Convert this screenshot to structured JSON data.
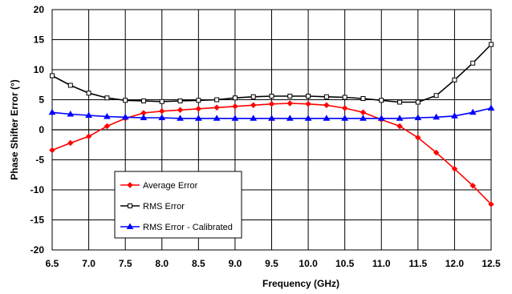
{
  "chart_data": {
    "type": "line",
    "xlabel": "Frequency (GHz)",
    "ylabel": "Phase Shifter Error (°)",
    "xlim": [
      6.5,
      12.5
    ],
    "ylim": [
      -20,
      20
    ],
    "xticks": [
      "6.5",
      "7.0",
      "7.5",
      "8.0",
      "8.5",
      "9.0",
      "9.5",
      "10.0",
      "10.5",
      "11.0",
      "11.5",
      "12.0",
      "12.5"
    ],
    "yticks": [
      "20",
      "15",
      "10",
      "5",
      "0",
      "-5",
      "-10",
      "-15",
      "-20"
    ],
    "grid": true,
    "legend_position": "lower-left",
    "series": [
      {
        "name": "Average Error",
        "color": "#ff0000",
        "marker": "diamond",
        "x": [
          6.5,
          6.75,
          7.0,
          7.25,
          7.5,
          7.75,
          8.0,
          8.25,
          8.5,
          8.75,
          9.0,
          9.25,
          9.5,
          9.75,
          10.0,
          10.25,
          10.5,
          10.75,
          11.0,
          11.25,
          11.5,
          11.75,
          12.0,
          12.25,
          12.5
        ],
        "values": [
          -3.4,
          -2.2,
          -1.1,
          0.6,
          1.9,
          2.8,
          3.1,
          3.3,
          3.5,
          3.7,
          3.9,
          4.1,
          4.3,
          4.4,
          4.3,
          4.1,
          3.6,
          2.9,
          1.7,
          0.6,
          -1.3,
          -3.8,
          -6.5,
          -9.3,
          -12.4
        ]
      },
      {
        "name": "RMS Error",
        "color": "#000000",
        "marker": "square",
        "x": [
          6.5,
          6.75,
          7.0,
          7.25,
          7.5,
          7.75,
          8.0,
          8.25,
          8.5,
          8.75,
          9.0,
          9.25,
          9.5,
          9.75,
          10.0,
          10.25,
          10.5,
          10.75,
          11.0,
          11.25,
          11.5,
          11.75,
          12.0,
          12.25,
          12.5
        ],
        "values": [
          9.0,
          7.4,
          6.1,
          5.3,
          4.9,
          4.8,
          4.7,
          4.8,
          4.9,
          5.0,
          5.3,
          5.5,
          5.6,
          5.6,
          5.6,
          5.5,
          5.4,
          5.2,
          4.9,
          4.6,
          4.6,
          5.7,
          8.3,
          11.1,
          14.2
        ]
      },
      {
        "name": "RMS Error - Calibrated",
        "color": "#0000ff",
        "marker": "triangle",
        "x": [
          6.5,
          6.75,
          7.0,
          7.25,
          7.5,
          7.75,
          8.0,
          8.25,
          8.5,
          8.75,
          9.0,
          9.25,
          9.5,
          9.75,
          10.0,
          10.25,
          10.5,
          10.75,
          11.0,
          11.25,
          11.5,
          11.75,
          12.0,
          12.25,
          12.5
        ],
        "values": [
          2.9,
          2.6,
          2.4,
          2.2,
          2.1,
          2.0,
          2.0,
          1.9,
          1.9,
          1.9,
          1.9,
          1.9,
          1.9,
          1.9,
          1.9,
          1.9,
          1.9,
          1.9,
          1.9,
          1.9,
          2.0,
          2.1,
          2.3,
          2.9,
          3.6
        ]
      }
    ]
  }
}
